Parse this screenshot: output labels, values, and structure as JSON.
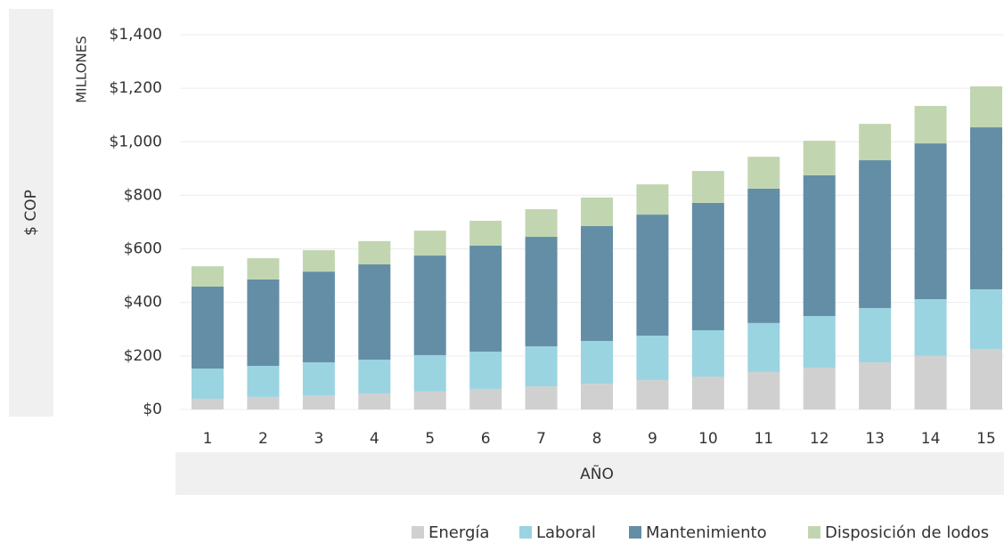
{
  "chart_data": {
    "type": "stacked_bar",
    "ylabel": "$ COP",
    "unit_label": "MILLONES",
    "xlabel": "AÑO",
    "categories": [
      "1",
      "2",
      "3",
      "4",
      "5",
      "6",
      "7",
      "8",
      "9",
      "10",
      "11",
      "12",
      "13",
      "14",
      "15"
    ],
    "series": [
      {
        "name": "Energía",
        "color": "#d0d0d0",
        "values": [
          40,
          47,
          53,
          60,
          67,
          77,
          86,
          96,
          110,
          123,
          140,
          156,
          176,
          200,
          226
        ]
      },
      {
        "name": "Laboral",
        "color": "#99d4e0",
        "values": [
          113,
          116,
          123,
          126,
          136,
          139,
          150,
          160,
          166,
          173,
          183,
          193,
          203,
          212,
          223
        ]
      },
      {
        "name": "Mantenimiento",
        "color": "#638ea6",
        "values": [
          306,
          323,
          339,
          356,
          372,
          396,
          409,
          429,
          452,
          476,
          502,
          526,
          552,
          582,
          605
        ]
      },
      {
        "name": "Disposición de lodos",
        "color": "#c1d6b0",
        "values": [
          76,
          79,
          80,
          87,
          93,
          93,
          103,
          107,
          113,
          119,
          119,
          129,
          136,
          140,
          153
        ]
      }
    ],
    "ylim": [
      0,
      1400
    ],
    "yticks": [
      {
        "value": 0,
        "label": "$0"
      },
      {
        "value": 200,
        "label": "$200"
      },
      {
        "value": 400,
        "label": "$400"
      },
      {
        "value": 600,
        "label": "$600"
      },
      {
        "value": 800,
        "label": "$800"
      },
      {
        "value": 1000,
        "label": "$1,000"
      },
      {
        "value": 1200,
        "label": "$1,200"
      },
      {
        "value": 1400,
        "label": "$1,400"
      }
    ],
    "grid": true,
    "legend": "bottom-right"
  }
}
